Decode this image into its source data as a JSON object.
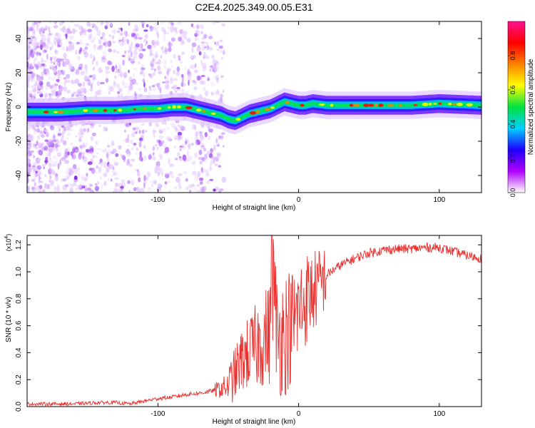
{
  "page": {
    "title": "C2E4.2025.349.00.05.E31"
  },
  "chart_data": [
    {
      "type": "heatmap",
      "title": "C2E4.2025.349.00.05.E31",
      "xlabel": "Height of straight line (km)",
      "ylabel": "Frequency (Hz)",
      "xlim": [
        -193,
        130
      ],
      "ylim": [
        -50,
        50
      ],
      "x_ticks": [
        -100,
        0,
        100
      ],
      "x_tick_labels": [
        "-100",
        "0",
        "100"
      ],
      "y_ticks": [
        -40,
        -20,
        0,
        20,
        40
      ],
      "y_tick_labels": [
        "-40",
        "-20",
        "0",
        "20",
        "40"
      ],
      "ridge": {
        "name": "peak frequency",
        "x": [
          -193,
          -170,
          -150,
          -130,
          -110,
          -100,
          -90,
          -80,
          -70,
          -60,
          -55,
          -50,
          -45,
          -40,
          -35,
          -30,
          -25,
          -20,
          -15,
          -10,
          -5,
          0,
          5,
          10,
          20,
          40,
          60,
          80,
          100,
          130
        ],
        "y": [
          -3,
          -3,
          -2,
          -2,
          -1,
          -1,
          0,
          0,
          -2,
          -4,
          -5,
          -7,
          -8,
          -6,
          -4,
          -3,
          -2,
          -1,
          1,
          3,
          2,
          1,
          1,
          2,
          1,
          1,
          1,
          1,
          2,
          1
        ]
      },
      "colorbar": {
        "label": "Normalized spectral amplitude",
        "range": [
          0,
          1
        ],
        "ticks": [
          0.0,
          0.2,
          0.4,
          0.6,
          0.8
        ],
        "tick_labels": [
          "0.0",
          "0.2",
          "0.4",
          "0.6",
          "0.8"
        ],
        "colors": [
          "#ffffff",
          "#b000ff",
          "#2000ff",
          "#00d0ff",
          "#00e040",
          "#ffff00",
          "#ff8000",
          "#ff0000",
          "#ff1090"
        ]
      }
    },
    {
      "type": "line",
      "xlabel": "Height of straight line (km)",
      "ylabel": "SNR (10 * v/v)",
      "y_scale_label": "(x10",
      "y_scale_exponent": "4",
      "xlim": [
        -193,
        130
      ],
      "ylim": [
        0,
        1.27
      ],
      "x_ticks": [
        -100,
        0,
        100
      ],
      "x_tick_labels": [
        "-100",
        "0",
        "100"
      ],
      "y_ticks": [
        0.0,
        0.2,
        0.4,
        0.6,
        0.8,
        1.0,
        1.2
      ],
      "y_tick_labels": [
        "0.0",
        "0.2",
        "0.4",
        "0.6",
        "0.8",
        "1.0",
        "1.2"
      ],
      "series": [
        {
          "name": "SNR",
          "color": "#e8312f",
          "x": [
            -193,
            -180,
            -160,
            -140,
            -130,
            -120,
            -110,
            -100,
            -90,
            -80,
            -70,
            -60,
            -50,
            -45,
            -40,
            -35,
            -30,
            -25,
            -20,
            -18,
            -15,
            -10,
            -5,
            0,
            5,
            10,
            15,
            20,
            30,
            40,
            50,
            60,
            70,
            80,
            90,
            100,
            110,
            120,
            130
          ],
          "y": [
            0.02,
            0.02,
            0.02,
            0.03,
            0.03,
            0.02,
            0.04,
            0.06,
            0.07,
            0.09,
            0.1,
            0.12,
            0.15,
            0.25,
            0.35,
            0.4,
            0.45,
            0.5,
            0.55,
            0.95,
            0.5,
            0.55,
            0.6,
            0.7,
            0.8,
            0.85,
            0.9,
            0.98,
            1.05,
            1.1,
            1.14,
            1.16,
            1.17,
            1.17,
            1.18,
            1.18,
            1.15,
            1.12,
            1.1
          ]
        }
      ]
    }
  ]
}
